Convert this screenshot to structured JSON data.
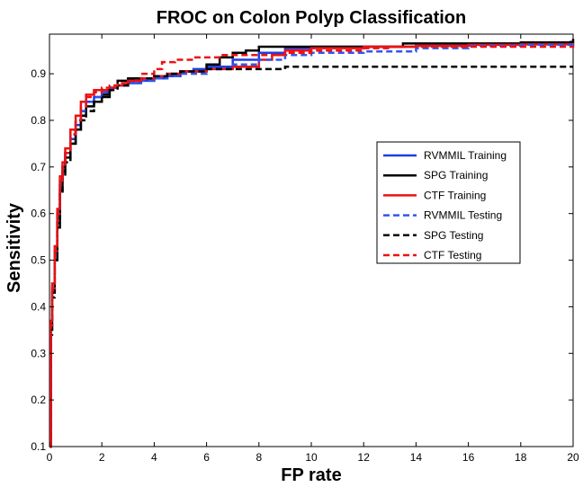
{
  "chart_data": {
    "type": "line",
    "title": "FROC on Colon Polyp Classification",
    "xlabel": "FP rate",
    "ylabel": "Sensitivity",
    "xlim": [
      0,
      20
    ],
    "ylim": [
      0.1,
      0.985
    ],
    "xticks": [
      0,
      2,
      4,
      6,
      8,
      10,
      12,
      14,
      16,
      18,
      20
    ],
    "yticks": [
      0.1,
      0.2,
      0.3,
      0.4,
      0.5,
      0.6,
      0.7,
      0.8,
      0.9
    ],
    "xtick_labels": [
      "0",
      "2",
      "4",
      "6",
      "8",
      "10",
      "12",
      "14",
      "16",
      "18",
      "20"
    ],
    "ytick_labels": [
      "0.1",
      "0.2",
      "0.3",
      "0.4",
      "0.5",
      "0.6",
      "0.7",
      "0.8",
      "0.9"
    ],
    "legend_position": "center-right",
    "grid": false,
    "series": [
      {
        "name": "RVMMIL Training",
        "color": "#1f3fe0",
        "dash": "solid",
        "points": [
          [
            0,
            0.1
          ],
          [
            0.05,
            0.36
          ],
          [
            0.1,
            0.44
          ],
          [
            0.2,
            0.52
          ],
          [
            0.3,
            0.6
          ],
          [
            0.4,
            0.67
          ],
          [
            0.5,
            0.7
          ],
          [
            0.6,
            0.73
          ],
          [
            0.8,
            0.76
          ],
          [
            1.0,
            0.79
          ],
          [
            1.2,
            0.82
          ],
          [
            1.4,
            0.84
          ],
          [
            1.7,
            0.85
          ],
          [
            2.0,
            0.86
          ],
          [
            2.3,
            0.87
          ],
          [
            2.6,
            0.875
          ],
          [
            3.0,
            0.88
          ],
          [
            3.5,
            0.885
          ],
          [
            4.0,
            0.89
          ],
          [
            4.5,
            0.895
          ],
          [
            5.0,
            0.905
          ],
          [
            5.5,
            0.91
          ],
          [
            6.0,
            0.915
          ],
          [
            7.0,
            0.93
          ],
          [
            8.0,
            0.945
          ],
          [
            9.0,
            0.955
          ],
          [
            10.0,
            0.958
          ],
          [
            12.0,
            0.958
          ],
          [
            14.0,
            0.96
          ],
          [
            16.0,
            0.962
          ],
          [
            18.0,
            0.963
          ],
          [
            20.0,
            0.965
          ]
        ]
      },
      {
        "name": "SPG Training",
        "color": "#000000",
        "dash": "solid",
        "points": [
          [
            0,
            0.1
          ],
          [
            0.05,
            0.35
          ],
          [
            0.1,
            0.43
          ],
          [
            0.2,
            0.5
          ],
          [
            0.3,
            0.58
          ],
          [
            0.4,
            0.65
          ],
          [
            0.5,
            0.69
          ],
          [
            0.6,
            0.72
          ],
          [
            0.8,
            0.75
          ],
          [
            1.0,
            0.78
          ],
          [
            1.2,
            0.81
          ],
          [
            1.4,
            0.83
          ],
          [
            1.7,
            0.84
          ],
          [
            2.0,
            0.85
          ],
          [
            2.3,
            0.87
          ],
          [
            2.6,
            0.885
          ],
          [
            3.0,
            0.89
          ],
          [
            3.5,
            0.89
          ],
          [
            4.0,
            0.895
          ],
          [
            4.5,
            0.9
          ],
          [
            5.0,
            0.905
          ],
          [
            6.0,
            0.92
          ],
          [
            6.5,
            0.935
          ],
          [
            7.0,
            0.945
          ],
          [
            7.5,
            0.95
          ],
          [
            8.0,
            0.958
          ],
          [
            10.0,
            0.958
          ],
          [
            12.0,
            0.958
          ],
          [
            13.5,
            0.965
          ],
          [
            16.0,
            0.965
          ],
          [
            18.0,
            0.967
          ],
          [
            19.9,
            0.968
          ],
          [
            20.0,
            0.975
          ]
        ]
      },
      {
        "name": "CTF Training",
        "color": "#ee1111",
        "dash": "solid",
        "points": [
          [
            0,
            0.1
          ],
          [
            0.05,
            0.37
          ],
          [
            0.1,
            0.45
          ],
          [
            0.2,
            0.53
          ],
          [
            0.3,
            0.61
          ],
          [
            0.4,
            0.68
          ],
          [
            0.5,
            0.71
          ],
          [
            0.6,
            0.74
          ],
          [
            0.8,
            0.78
          ],
          [
            1.0,
            0.81
          ],
          [
            1.2,
            0.84
          ],
          [
            1.4,
            0.855
          ],
          [
            1.7,
            0.865
          ],
          [
            2.0,
            0.865
          ],
          [
            2.3,
            0.87
          ],
          [
            2.6,
            0.875
          ],
          [
            3.0,
            0.885
          ],
          [
            3.5,
            0.89
          ],
          [
            4.0,
            0.895
          ],
          [
            4.5,
            0.9
          ],
          [
            5.0,
            0.905
          ],
          [
            6.0,
            0.91
          ],
          [
            7.0,
            0.915
          ],
          [
            8.0,
            0.93
          ],
          [
            8.5,
            0.94
          ],
          [
            9.0,
            0.95
          ],
          [
            10.0,
            0.955
          ],
          [
            12.0,
            0.958
          ],
          [
            14.0,
            0.96
          ],
          [
            16.0,
            0.962
          ],
          [
            18.0,
            0.963
          ],
          [
            20.0,
            0.965
          ]
        ]
      },
      {
        "name": "RVMMIL Testing",
        "color": "#3355ee",
        "dash": "dashed",
        "points": [
          [
            0,
            0.1
          ],
          [
            0.05,
            0.35
          ],
          [
            0.1,
            0.43
          ],
          [
            0.2,
            0.51
          ],
          [
            0.3,
            0.59
          ],
          [
            0.4,
            0.66
          ],
          [
            0.5,
            0.7
          ],
          [
            0.6,
            0.73
          ],
          [
            0.8,
            0.77
          ],
          [
            1.0,
            0.8
          ],
          [
            1.2,
            0.82
          ],
          [
            1.4,
            0.84
          ],
          [
            1.7,
            0.85
          ],
          [
            2.0,
            0.86
          ],
          [
            2.3,
            0.87
          ],
          [
            2.6,
            0.875
          ],
          [
            3.0,
            0.88
          ],
          [
            3.5,
            0.885
          ],
          [
            4.0,
            0.89
          ],
          [
            4.5,
            0.895
          ],
          [
            5.0,
            0.9
          ],
          [
            6.0,
            0.91
          ],
          [
            6.9,
            0.915
          ],
          [
            7.0,
            0.92
          ],
          [
            8.0,
            0.93
          ],
          [
            9.0,
            0.94
          ],
          [
            10.0,
            0.945
          ],
          [
            12.0,
            0.948
          ],
          [
            14.0,
            0.955
          ],
          [
            16.0,
            0.96
          ],
          [
            18.0,
            0.962
          ],
          [
            20.0,
            0.963
          ]
        ]
      },
      {
        "name": "SPG Testing",
        "color": "#000000",
        "dash": "dashed",
        "points": [
          [
            0,
            0.1
          ],
          [
            0.05,
            0.34
          ],
          [
            0.1,
            0.42
          ],
          [
            0.2,
            0.5
          ],
          [
            0.3,
            0.57
          ],
          [
            0.4,
            0.64
          ],
          [
            0.5,
            0.68
          ],
          [
            0.6,
            0.71
          ],
          [
            0.8,
            0.75
          ],
          [
            1.0,
            0.78
          ],
          [
            1.2,
            0.8
          ],
          [
            1.4,
            0.82
          ],
          [
            1.7,
            0.84
          ],
          [
            2.0,
            0.855
          ],
          [
            2.3,
            0.865
          ],
          [
            2.6,
            0.875
          ],
          [
            3.0,
            0.885
          ],
          [
            3.5,
            0.89
          ],
          [
            4.0,
            0.895
          ],
          [
            4.5,
            0.9
          ],
          [
            5.0,
            0.905
          ],
          [
            6.0,
            0.91
          ],
          [
            7.0,
            0.91
          ],
          [
            8.0,
            0.91
          ],
          [
            8.8,
            0.91
          ],
          [
            9.0,
            0.915
          ],
          [
            12.0,
            0.915
          ],
          [
            14.0,
            0.915
          ],
          [
            16.0,
            0.915
          ],
          [
            18.0,
            0.915
          ],
          [
            20.0,
            0.915
          ]
        ]
      },
      {
        "name": "CTF Testing",
        "color": "#ee1111",
        "dash": "dashed",
        "points": [
          [
            0,
            0.1
          ],
          [
            0.05,
            0.36
          ],
          [
            0.1,
            0.44
          ],
          [
            0.2,
            0.52
          ],
          [
            0.3,
            0.6
          ],
          [
            0.4,
            0.67
          ],
          [
            0.5,
            0.7
          ],
          [
            0.6,
            0.73
          ],
          [
            0.8,
            0.77
          ],
          [
            1.0,
            0.8
          ],
          [
            1.2,
            0.83
          ],
          [
            1.4,
            0.85
          ],
          [
            1.7,
            0.86
          ],
          [
            2.0,
            0.87
          ],
          [
            2.3,
            0.875
          ],
          [
            2.6,
            0.88
          ],
          [
            3.0,
            0.885
          ],
          [
            3.5,
            0.9
          ],
          [
            4.0,
            0.91
          ],
          [
            4.3,
            0.925
          ],
          [
            4.8,
            0.93
          ],
          [
            5.5,
            0.935
          ],
          [
            6.5,
            0.94
          ],
          [
            8.0,
            0.94
          ],
          [
            9.0,
            0.945
          ],
          [
            10.0,
            0.95
          ],
          [
            12.0,
            0.955
          ],
          [
            13.0,
            0.958
          ],
          [
            14.0,
            0.958
          ],
          [
            16.0,
            0.958
          ],
          [
            18.0,
            0.958
          ],
          [
            20.0,
            0.96
          ]
        ]
      }
    ]
  }
}
